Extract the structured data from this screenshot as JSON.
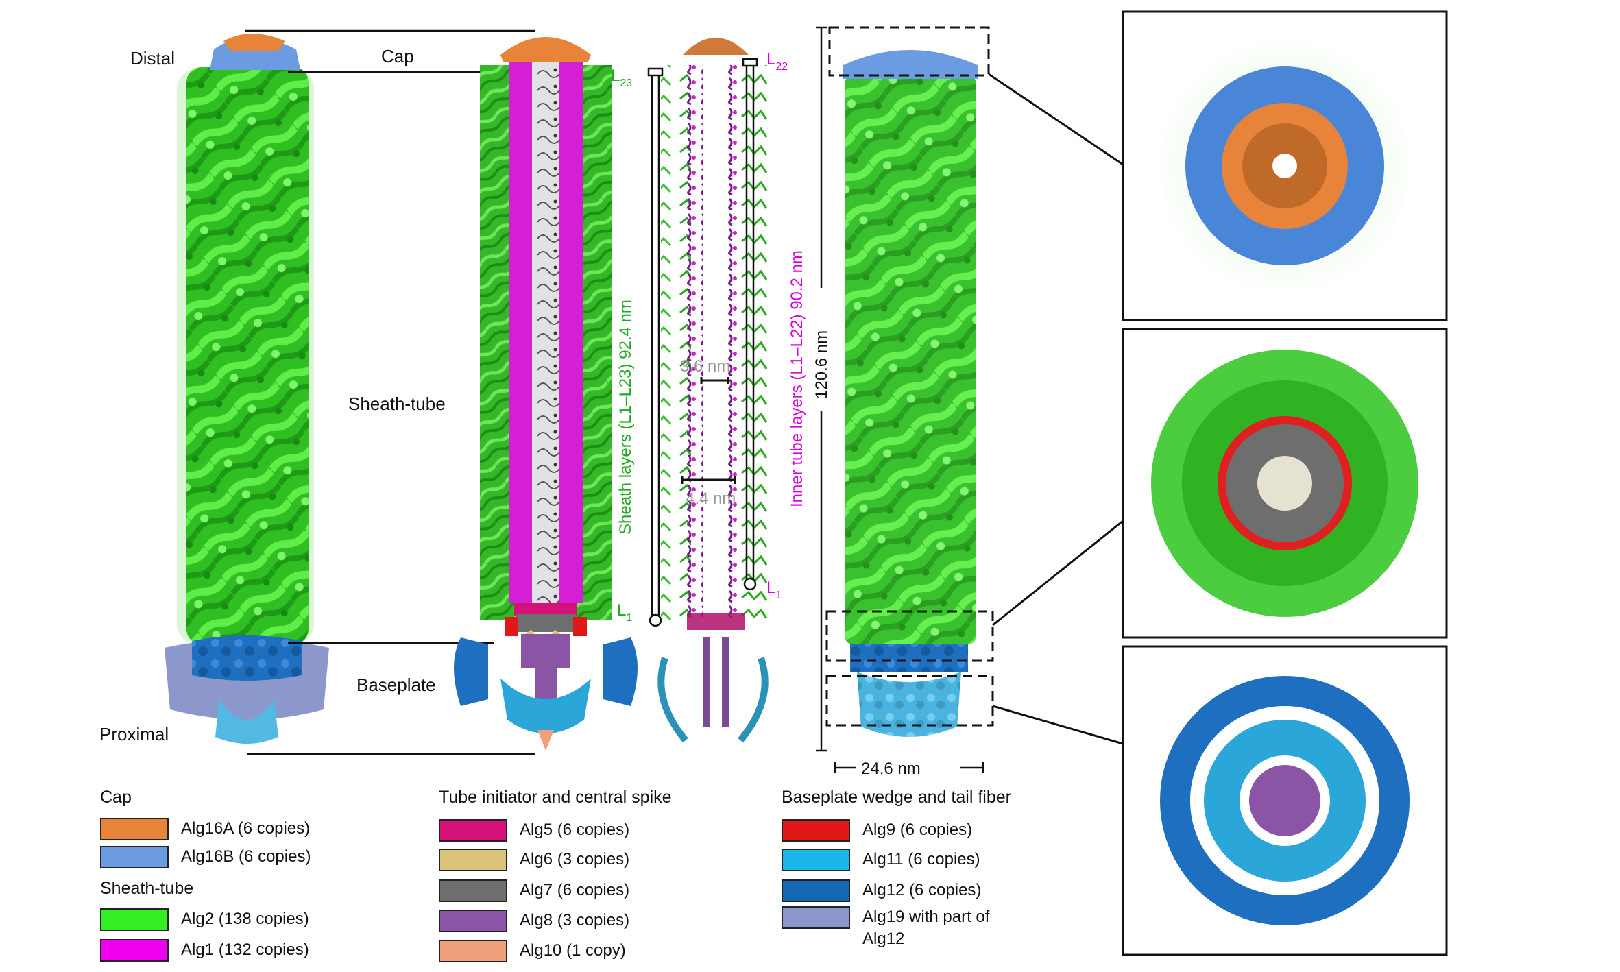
{
  "figure": {
    "left_panel": {
      "distal_label": "Distal",
      "cap_label": "Cap",
      "sheath_tube_label": "Sheath-tube",
      "baseplate_label": "Baseplate",
      "proximal_label": "Proximal"
    },
    "section_panel": {
      "l23_base": "L",
      "l23_sub": "23",
      "l22_base": "L",
      "l22_sub": "22",
      "l1_left_base": "L",
      "l1_left_sub": "1",
      "l1_right_base": "L",
      "l1_right_sub": "1",
      "sheath_layers_prefix": "Sheath layers (",
      "sheath_layers_range": "L1–L23",
      "sheath_layers_suffix": ") 92.4 nm",
      "inner_tube_prefix": "Inner tube layers (",
      "inner_tube_range": "L1–L22",
      "inner_tube_suffix": ") 90.2 nm",
      "spacing_label_1": "3.6 nm",
      "spacing_label_2": "4.4 nm"
    },
    "full_model": {
      "height_label": "120.6 nm",
      "width_label": "24.6 nm"
    },
    "colors": {
      "sheath_green": "#33cc22",
      "tube_magenta": "#dd00dd",
      "cap_orange": "#e8843a",
      "cap_blue": "#6b9be0",
      "alg5": "#d4127a",
      "alg6": "#dbc27a",
      "alg7": "#6e6e6e",
      "alg8": "#8a55a5",
      "alg10": "#f0a07a",
      "alg9": "#e01818",
      "alg11": "#19b6e8",
      "alg12": "#1467b5",
      "alg19": "#8c97cc"
    }
  },
  "legend": {
    "groups": [
      {
        "title": "Cap",
        "items": [
          {
            "label": "Alg16A (6 copies)",
            "color": "#e8843a"
          },
          {
            "label": "Alg16B (6 copies)",
            "color": "#6b9be0"
          }
        ]
      },
      {
        "title": "Sheath-tube",
        "items": [
          {
            "label": "Alg2 (138 copies)",
            "color": "#33ee22"
          },
          {
            "label": "Alg1 (132 copies)",
            "color": "#ee00ee"
          }
        ]
      },
      {
        "title": "Tube initiator and central spike",
        "items": [
          {
            "label": "Alg5 (6 copies)",
            "color": "#d4127a"
          },
          {
            "label": "Alg6 (3 copies)",
            "color": "#dbc27a"
          },
          {
            "label": "Alg7 (6 copies)",
            "color": "#6e6e6e"
          },
          {
            "label": "Alg8 (3 copies)",
            "color": "#8a55a5"
          },
          {
            "label": "Alg10 (1 copy)",
            "color": "#f0a07a"
          }
        ]
      },
      {
        "title": "Baseplate wedge and tail fiber",
        "items": [
          {
            "label": "Alg9 (6 copies)",
            "color": "#e01818"
          },
          {
            "label": "Alg11 (6 copies)",
            "color": "#19b6e8"
          },
          {
            "label": "Alg12 (6 copies)",
            "color": "#1467b5"
          },
          {
            "label": "Alg19 with part of",
            "label2": "Alg12",
            "color": "#8c97cc"
          }
        ]
      }
    ]
  }
}
